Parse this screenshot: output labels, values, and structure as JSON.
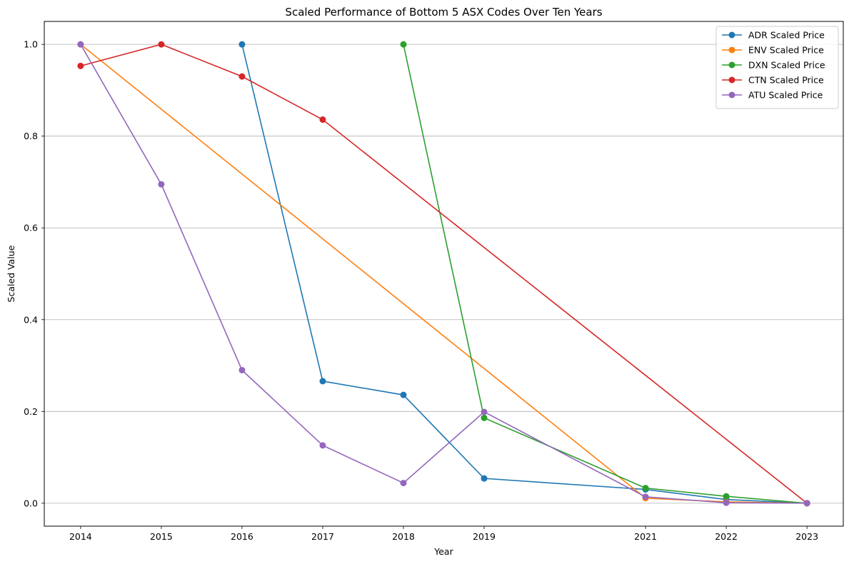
{
  "chart_data": {
    "type": "line",
    "title": "Scaled Performance of Bottom 5 ASX Codes Over Ten Years",
    "xlabel": "Year",
    "ylabel": "Scaled Value",
    "x_ticks": [
      2014,
      2015,
      2016,
      2017,
      2018,
      2019,
      2021,
      2022,
      2023
    ],
    "y_ticks": [
      0.0,
      0.2,
      0.4,
      0.6,
      0.8,
      1.0
    ],
    "y_tick_labels": [
      "0.0",
      "0.2",
      "0.4",
      "0.6",
      "0.8",
      "1.0"
    ],
    "ylim": [
      -0.05,
      1.05
    ],
    "grid": "horizontal",
    "legend_position": "top-right",
    "series": [
      {
        "name": "ADR Scaled Price",
        "color": "#1f77b4",
        "points": [
          [
            2016,
            1.0
          ],
          [
            2017,
            0.266
          ],
          [
            2018,
            0.236
          ],
          [
            2019,
            0.054
          ],
          [
            2021,
            0.03
          ],
          [
            2022,
            0.008
          ],
          [
            2023,
            0.0
          ]
        ]
      },
      {
        "name": "ENV Scaled Price",
        "color": "#ff7f0e",
        "points": [
          [
            2014,
            1.0
          ],
          [
            2021,
            0.011
          ],
          [
            2022,
            0.003
          ],
          [
            2023,
            0.0
          ]
        ]
      },
      {
        "name": "DXN Scaled Price",
        "color": "#2ca02c",
        "points": [
          [
            2018,
            1.0
          ],
          [
            2019,
            0.186
          ],
          [
            2021,
            0.033
          ],
          [
            2022,
            0.015
          ],
          [
            2023,
            0.0
          ]
        ]
      },
      {
        "name": "CTN Scaled Price",
        "color": "#d62728",
        "points": [
          [
            2014,
            0.953
          ],
          [
            2015,
            1.0
          ],
          [
            2016,
            0.93
          ],
          [
            2017,
            0.836
          ],
          [
            2023,
            0.0
          ]
        ]
      },
      {
        "name": "ATU Scaled Price",
        "color": "#9467bd",
        "points": [
          [
            2014,
            1.0
          ],
          [
            2015,
            0.695
          ],
          [
            2016,
            0.29
          ],
          [
            2017,
            0.126
          ],
          [
            2018,
            0.044
          ],
          [
            2019,
            0.199
          ],
          [
            2021,
            0.014
          ],
          [
            2022,
            0.001
          ],
          [
            2023,
            0.0
          ]
        ]
      }
    ]
  }
}
